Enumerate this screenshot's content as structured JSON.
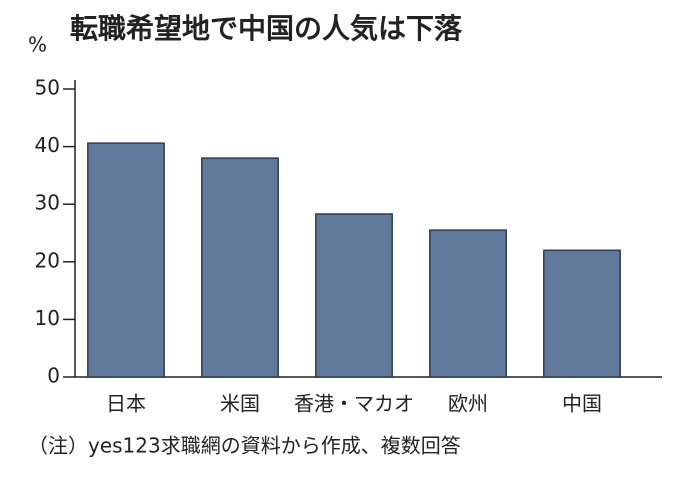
{
  "chart_data": {
    "type": "bar",
    "title": "転職希望地で中国の人気は下落",
    "y_label": "%",
    "categories": [
      "日本",
      "米国",
      "香港・マカオ",
      "欧州",
      "中国"
    ],
    "values": [
      40.6,
      38,
      28.3,
      25.5,
      22
    ],
    "color": "#61799a",
    "ylim": [
      0,
      50
    ],
    "yticks": [
      0,
      10,
      20,
      30,
      40,
      50
    ],
    "grid": false,
    "note": "（注）yes123求職網の資料から作成、複数回答"
  }
}
